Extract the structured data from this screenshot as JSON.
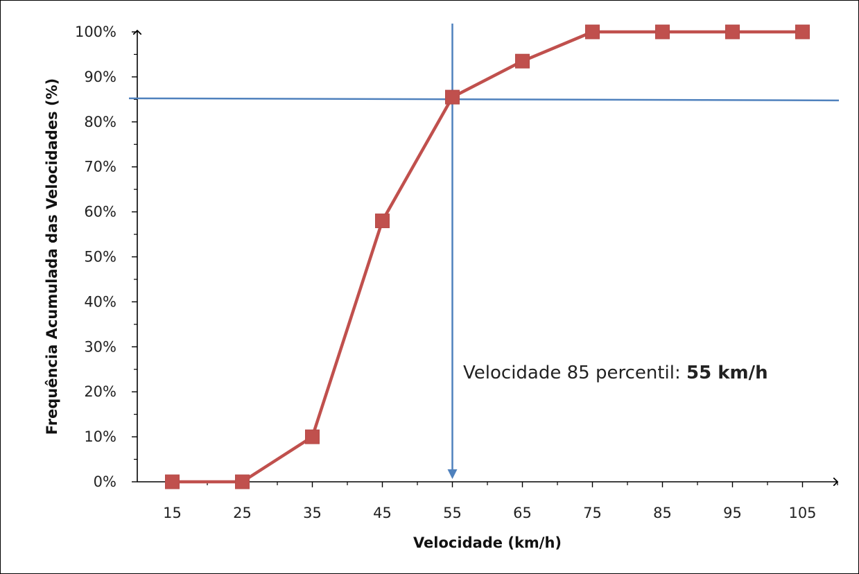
{
  "chart_data": {
    "type": "line",
    "x": [
      15,
      25,
      35,
      45,
      55,
      65,
      75,
      85,
      95,
      105
    ],
    "categories": [
      "15",
      "25",
      "35",
      "45",
      "55",
      "65",
      "75",
      "85",
      "95",
      "105"
    ],
    "series": [
      {
        "values": [
          0,
          0,
          10,
          58,
          85.5,
          93.5,
          100,
          100,
          100,
          100
        ]
      }
    ],
    "xlabel": "Velocidade  (km/h)",
    "ylabel": "Frequência Acumulada das Velocidades (%)",
    "ylim": [
      0,
      100
    ],
    "y_ticks": [
      0,
      10,
      20,
      30,
      40,
      50,
      60,
      70,
      80,
      90,
      100
    ],
    "y_tick_labels": [
      "0%",
      "10%",
      "20%",
      "30%",
      "40%",
      "50%",
      "60%",
      "70%",
      "80%",
      "90%",
      "100%"
    ],
    "grid": false,
    "legend": "none",
    "reference_lines": {
      "horizontal_y": 85,
      "vertical_x": 55
    },
    "annotation": {
      "text": "Velocidade 85 percentil: ",
      "bold_text": "55 km/h"
    },
    "colors": {
      "series": "#c0504d",
      "reference": "#4f81bd",
      "axis": "#000000"
    }
  }
}
